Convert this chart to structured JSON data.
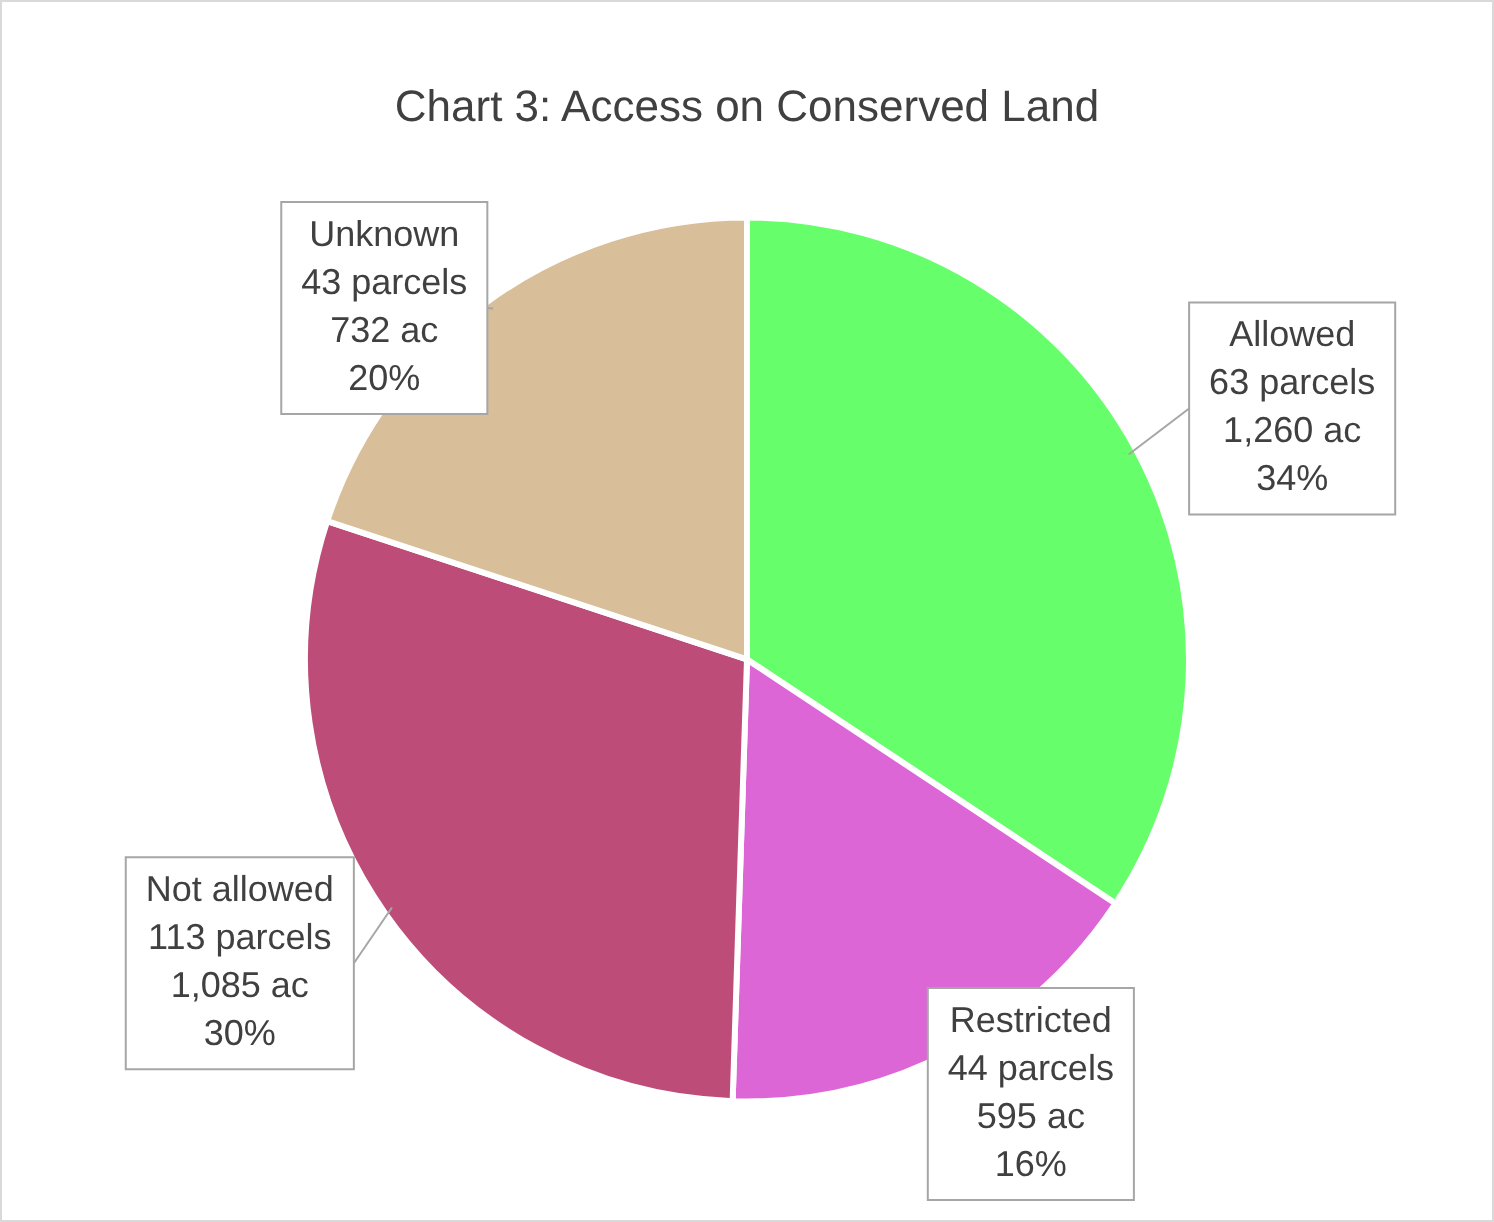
{
  "chart_data": {
    "type": "pie",
    "title": "Chart 3: Access on Conserved Land",
    "categories": [
      "Allowed",
      "Restricted",
      "Not allowed",
      "Unknown"
    ],
    "values": [
      1260,
      595,
      1085,
      732
    ],
    "colors": [
      "#66ff6b",
      "#dd66d6",
      "#bd4d78",
      "#d8be99"
    ],
    "value_labels": [
      "63 parcels\n1,260 ac\n34%",
      "44 parcels\n595 ac\n16%",
      "113 parcels\n1,085 ac\n30%",
      "43 parcels\n732 ac\n20%"
    ],
    "legend": false
  }
}
